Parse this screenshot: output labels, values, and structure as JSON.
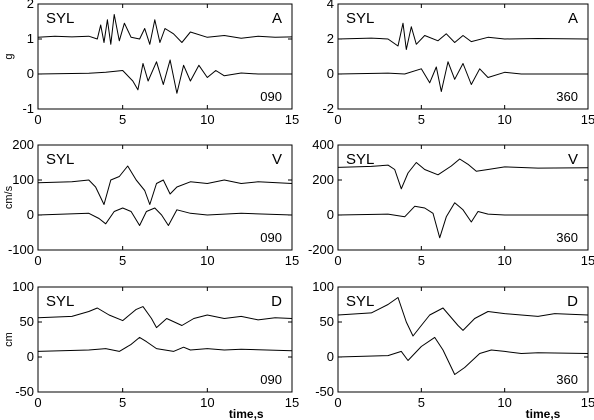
{
  "chart_data": [
    {
      "type": "line",
      "station": "SYL",
      "quantity": "A",
      "component": "090",
      "ylabel": "g",
      "xlabel": "",
      "xlim": [
        0,
        15
      ],
      "ylim": [
        -1,
        2
      ],
      "xticks": [
        0,
        5,
        10,
        15
      ],
      "yticks": [
        -1,
        0,
        1,
        2
      ],
      "series": [
        {
          "offset": 1,
          "points": [
            [
              0,
              1.05
            ],
            [
              1,
              1.08
            ],
            [
              2,
              1.06
            ],
            [
              3,
              1.08
            ],
            [
              3.5,
              1.0
            ],
            [
              3.7,
              1.4
            ],
            [
              3.9,
              0.9
            ],
            [
              4.1,
              1.55
            ],
            [
              4.3,
              0.85
            ],
            [
              4.5,
              1.7
            ],
            [
              4.8,
              0.95
            ],
            [
              5.1,
              1.45
            ],
            [
              5.5,
              1.05
            ],
            [
              6,
              1.0
            ],
            [
              6.3,
              1.3
            ],
            [
              6.6,
              0.85
            ],
            [
              6.9,
              1.55
            ],
            [
              7.2,
              0.9
            ],
            [
              7.5,
              1.3
            ],
            [
              8,
              1.15
            ],
            [
              8.5,
              0.9
            ],
            [
              9,
              1.2
            ],
            [
              10,
              1.05
            ],
            [
              11,
              1.1
            ],
            [
              12,
              1.02
            ],
            [
              13,
              1.08
            ],
            [
              14,
              1.05
            ],
            [
              15,
              1.06
            ]
          ]
        },
        {
          "offset": 0,
          "points": [
            [
              0,
              0.0
            ],
            [
              3,
              0.02
            ],
            [
              4,
              0.05
            ],
            [
              5,
              0.1
            ],
            [
              5.6,
              -0.2
            ],
            [
              5.9,
              -0.45
            ],
            [
              6.2,
              0.3
            ],
            [
              6.5,
              -0.2
            ],
            [
              7,
              0.35
            ],
            [
              7.4,
              -0.3
            ],
            [
              7.8,
              0.4
            ],
            [
              8.2,
              -0.55
            ],
            [
              8.6,
              0.25
            ],
            [
              9,
              -0.2
            ],
            [
              9.5,
              0.25
            ],
            [
              10,
              -0.1
            ],
            [
              10.5,
              0.1
            ],
            [
              11,
              -0.05
            ],
            [
              12,
              0.03
            ],
            [
              13,
              0.0
            ],
            [
              15,
              0.0
            ]
          ]
        }
      ]
    },
    {
      "type": "line",
      "station": "SYL",
      "quantity": "A",
      "component": "360",
      "ylabel": "",
      "xlabel": "",
      "xlim": [
        0,
        15
      ],
      "ylim": [
        -2,
        4
      ],
      "xticks": [
        0,
        5,
        10,
        15
      ],
      "yticks": [
        -2,
        0,
        2,
        4
      ],
      "series": [
        {
          "offset": 2,
          "points": [
            [
              0,
              2.0
            ],
            [
              2,
              2.05
            ],
            [
              3,
              2.0
            ],
            [
              3.6,
              1.6
            ],
            [
              3.9,
              2.9
            ],
            [
              4.1,
              1.4
            ],
            [
              4.4,
              2.7
            ],
            [
              4.7,
              1.7
            ],
            [
              5.2,
              2.2
            ],
            [
              6,
              1.9
            ],
            [
              6.5,
              2.3
            ],
            [
              7,
              1.8
            ],
            [
              7.5,
              2.2
            ],
            [
              8,
              1.85
            ],
            [
              9,
              2.1
            ],
            [
              10,
              2.0
            ],
            [
              12,
              2.03
            ],
            [
              15,
              2.0
            ]
          ]
        },
        {
          "offset": 0,
          "points": [
            [
              0,
              0.0
            ],
            [
              3,
              0.05
            ],
            [
              4,
              0.0
            ],
            [
              5,
              0.3
            ],
            [
              5.5,
              -0.5
            ],
            [
              5.9,
              0.4
            ],
            [
              6.2,
              -1.0
            ],
            [
              6.6,
              0.7
            ],
            [
              7,
              -0.3
            ],
            [
              7.5,
              0.6
            ],
            [
              8,
              -0.6
            ],
            [
              8.5,
              0.3
            ],
            [
              9,
              -0.2
            ],
            [
              10,
              0.1
            ],
            [
              11,
              0.0
            ],
            [
              15,
              0.0
            ]
          ]
        }
      ]
    },
    {
      "type": "line",
      "station": "SYL",
      "quantity": "V",
      "component": "090",
      "ylabel": "cm/s",
      "xlabel": "",
      "xlim": [
        0,
        15
      ],
      "ylim": [
        -100,
        200
      ],
      "xticks": [
        0,
        5,
        10,
        15
      ],
      "yticks": [
        -100,
        0,
        100,
        200
      ],
      "series": [
        {
          "offset": 100,
          "points": [
            [
              0,
              92
            ],
            [
              2,
              95
            ],
            [
              3,
              100
            ],
            [
              3.4,
              80
            ],
            [
              3.9,
              30
            ],
            [
              4.3,
              100
            ],
            [
              4.8,
              110
            ],
            [
              5.3,
              140
            ],
            [
              5.8,
              100
            ],
            [
              6.3,
              70
            ],
            [
              6.6,
              30
            ],
            [
              7.0,
              90
            ],
            [
              7.4,
              100
            ],
            [
              7.8,
              60
            ],
            [
              8.2,
              80
            ],
            [
              9,
              95
            ],
            [
              10,
              90
            ],
            [
              11,
              100
            ],
            [
              12,
              90
            ],
            [
              13,
              95
            ],
            [
              15,
              90
            ]
          ]
        },
        {
          "offset": 0,
          "points": [
            [
              0,
              0
            ],
            [
              3,
              5
            ],
            [
              3.6,
              -10
            ],
            [
              4.0,
              -25
            ],
            [
              4.5,
              10
            ],
            [
              5.0,
              20
            ],
            [
              5.5,
              10
            ],
            [
              6.0,
              -30
            ],
            [
              6.4,
              10
            ],
            [
              6.9,
              20
            ],
            [
              7.3,
              0
            ],
            [
              7.7,
              -30
            ],
            [
              8.2,
              15
            ],
            [
              9,
              5
            ],
            [
              10,
              0
            ],
            [
              12,
              5
            ],
            [
              15,
              0
            ]
          ]
        }
      ]
    },
    {
      "type": "line",
      "station": "SYL",
      "quantity": "V",
      "component": "360",
      "ylabel": "",
      "xlabel": "",
      "xlim": [
        0,
        15
      ],
      "ylim": [
        -200,
        400
      ],
      "xticks": [
        0,
        5,
        10,
        15
      ],
      "yticks": [
        -200,
        0,
        200,
        400
      ],
      "series": [
        {
          "offset": 270,
          "points": [
            [
              0,
              272
            ],
            [
              2,
              278
            ],
            [
              3,
              285
            ],
            [
              3.4,
              260
            ],
            [
              3.8,
              150
            ],
            [
              4.2,
              240
            ],
            [
              4.7,
              300
            ],
            [
              5.2,
              260
            ],
            [
              6,
              230
            ],
            [
              6.8,
              280
            ],
            [
              7.3,
              320
            ],
            [
              7.8,
              290
            ],
            [
              8.3,
              250
            ],
            [
              9,
              260
            ],
            [
              10,
              275
            ],
            [
              12,
              268
            ],
            [
              15,
              270
            ]
          ]
        },
        {
          "offset": 0,
          "points": [
            [
              0,
              0
            ],
            [
              3,
              5
            ],
            [
              4,
              -10
            ],
            [
              4.6,
              50
            ],
            [
              5.2,
              40
            ],
            [
              5.7,
              10
            ],
            [
              6.1,
              -130
            ],
            [
              6.5,
              -10
            ],
            [
              7,
              70
            ],
            [
              7.5,
              30
            ],
            [
              8,
              -40
            ],
            [
              8.4,
              20
            ],
            [
              9,
              5
            ],
            [
              10,
              0
            ],
            [
              15,
              0
            ]
          ]
        }
      ]
    },
    {
      "type": "line",
      "station": "SYL",
      "quantity": "D",
      "component": "090",
      "ylabel": "cm",
      "xlabel": "time,s",
      "xlim": [
        0,
        15
      ],
      "ylim": [
        -50,
        100
      ],
      "xticks": [
        0,
        5,
        10,
        15
      ],
      "yticks": [
        -50,
        0,
        50,
        100
      ],
      "series": [
        {
          "offset": 55,
          "points": [
            [
              0,
              56
            ],
            [
              2,
              58
            ],
            [
              3,
              65
            ],
            [
              3.5,
              70
            ],
            [
              4.2,
              60
            ],
            [
              5,
              52
            ],
            [
              5.8,
              68
            ],
            [
              6.2,
              72
            ],
            [
              6.7,
              55
            ],
            [
              7.0,
              42
            ],
            [
              7.6,
              55
            ],
            [
              8.5,
              45
            ],
            [
              9.2,
              55
            ],
            [
              10,
              60
            ],
            [
              11,
              55
            ],
            [
              12,
              58
            ],
            [
              13,
              53
            ],
            [
              14,
              56
            ],
            [
              15,
              55
            ]
          ]
        },
        {
          "offset": 0,
          "points": [
            [
              0,
              8
            ],
            [
              3,
              10
            ],
            [
              4,
              12
            ],
            [
              4.8,
              8
            ],
            [
              5.5,
              18
            ],
            [
              6,
              28
            ],
            [
              6.4,
              22
            ],
            [
              7,
              12
            ],
            [
              8,
              8
            ],
            [
              8.6,
              14
            ],
            [
              9,
              10
            ],
            [
              10,
              12
            ],
            [
              11,
              10
            ],
            [
              12,
              11
            ],
            [
              15,
              9
            ]
          ]
        }
      ]
    },
    {
      "type": "line",
      "station": "SYL",
      "quantity": "D",
      "component": "360",
      "ylabel": "",
      "xlabel": "time,s",
      "xlim": [
        0,
        15
      ],
      "ylim": [
        -50,
        100
      ],
      "xticks": [
        0,
        5,
        10,
        15
      ],
      "yticks": [
        -50,
        0,
        50,
        100
      ],
      "series": [
        {
          "offset": 60,
          "points": [
            [
              0,
              60
            ],
            [
              2,
              63
            ],
            [
              3,
              75
            ],
            [
              3.6,
              85
            ],
            [
              4.1,
              50
            ],
            [
              4.5,
              30
            ],
            [
              5.0,
              45
            ],
            [
              5.5,
              60
            ],
            [
              6.3,
              70
            ],
            [
              7.2,
              45
            ],
            [
              7.5,
              38
            ],
            [
              8.2,
              55
            ],
            [
              9,
              65
            ],
            [
              10,
              62
            ],
            [
              11,
              60
            ],
            [
              12,
              58
            ],
            [
              13,
              62
            ],
            [
              15,
              60
            ]
          ]
        },
        {
          "offset": 0,
          "points": [
            [
              0,
              0
            ],
            [
              3,
              2
            ],
            [
              3.8,
              8
            ],
            [
              4.2,
              -5
            ],
            [
              5,
              15
            ],
            [
              5.8,
              28
            ],
            [
              6.3,
              10
            ],
            [
              7,
              -25
            ],
            [
              7.6,
              -15
            ],
            [
              8.5,
              5
            ],
            [
              9.2,
              10
            ],
            [
              10,
              8
            ],
            [
              11,
              5
            ],
            [
              12,
              6
            ],
            [
              15,
              5
            ]
          ]
        }
      ]
    }
  ]
}
